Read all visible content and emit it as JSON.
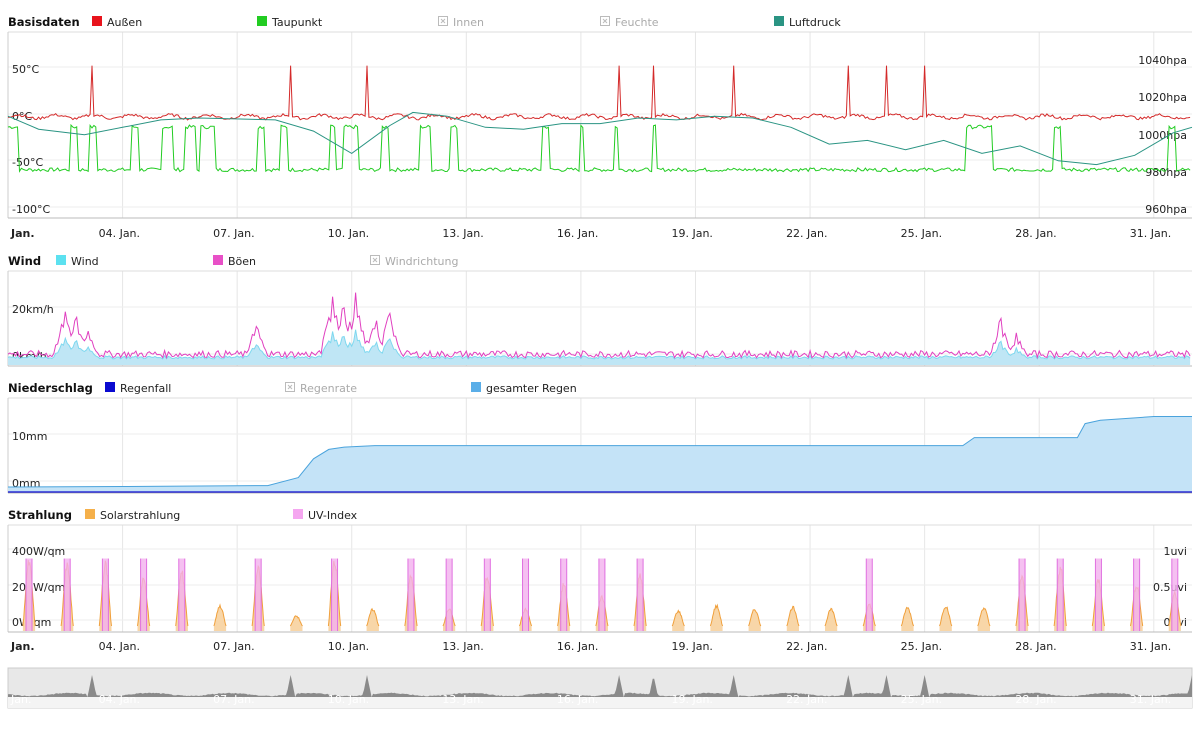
{
  "x_ticks": [
    "Jan.",
    "04. Jan.",
    "07. Jan.",
    "10. Jan.",
    "13. Jan.",
    "16. Jan.",
    "19. Jan.",
    "22. Jan.",
    "25. Jan.",
    "28. Jan.",
    "31. Jan."
  ],
  "navigator": {
    "ticks": [
      "Jan.",
      "04. Jan.",
      "07. Jan.",
      "10. Jan.",
      "13. Jan.",
      "16. Jan.",
      "19. Jan.",
      "22. Jan.",
      "25. Jan.",
      "28. Jan.",
      "31. Jan."
    ]
  },
  "chart_data": [
    {
      "type": "line",
      "title": "Basisdaten",
      "x_range": [
        1,
        32
      ],
      "yaxis_left": {
        "ticks": [
          "50°C",
          "0°C",
          "-50°C",
          "-100°C"
        ],
        "ylim": [
          -100,
          60
        ]
      },
      "yaxis_right": {
        "ticks": [
          "1040hpa",
          "1020hpa",
          "1000hpa",
          "980hpa",
          "960hpa"
        ],
        "ylim": [
          960,
          1040
        ]
      },
      "legend": [
        {
          "name": "Außen",
          "color": "#e8131c",
          "enabled": true
        },
        {
          "name": "Taupunkt",
          "color": "#22cc22",
          "enabled": true
        },
        {
          "name": "Innen",
          "color": "#aaaaaa",
          "enabled": false
        },
        {
          "name": "Feuchte",
          "color": "#aaaaaa",
          "enabled": false
        },
        {
          "name": "Luftdruck",
          "color": "#2a9483",
          "enabled": true
        }
      ],
      "series": [
        {
          "name": "Außen",
          "color": "#d42a2a",
          "axis": "left",
          "base": 3,
          "spikes": [
            3.2,
            8.4,
            10.4,
            17.0,
            17.9,
            20.0,
            23.0,
            24.0,
            25.0,
            32.0
          ],
          "spike_value": 58
        },
        {
          "name": "Taupunkt",
          "color": "#22cc22",
          "axis": "left",
          "low": -54,
          "high": -8,
          "highs": [
            [
              1.0,
              1.3
            ],
            [
              2.6,
              2.8
            ],
            [
              3.1,
              3.3
            ],
            [
              4.2,
              4.4
            ],
            [
              5.0,
              5.3
            ],
            [
              5.6,
              5.9
            ],
            [
              6.0,
              6.4
            ],
            [
              7.5,
              7.7
            ],
            [
              8.1,
              8.3
            ],
            [
              9.4,
              9.6
            ],
            [
              9.8,
              10.2
            ],
            [
              10.8,
              11.0
            ],
            [
              11.8,
              12.1
            ],
            [
              12.6,
              12.8
            ],
            [
              15.0,
              15.2
            ],
            [
              16.0,
              16.1
            ],
            [
              16.9,
              17.0
            ],
            [
              17.9,
              18.0
            ],
            [
              26.1,
              26.8
            ],
            [
              28.4,
              28.6
            ],
            [
              31.4,
              31.6
            ]
          ]
        },
        {
          "name": "Luftdruck",
          "color": "#2a9483",
          "axis": "right",
          "points": [
            [
              1,
              1012
            ],
            [
              1.8,
              1005
            ],
            [
              3,
              1002
            ],
            [
              4,
              1006
            ],
            [
              5,
              1010
            ],
            [
              6,
              1011
            ],
            [
              8,
              1010
            ],
            [
              9,
              1004
            ],
            [
              10,
              992
            ],
            [
              11,
              1007
            ],
            [
              11.6,
              1014
            ],
            [
              12.5,
              1012
            ],
            [
              13.5,
              1006
            ],
            [
              14.5,
              1005
            ],
            [
              15.5,
              1008
            ],
            [
              16.5,
              1008
            ],
            [
              17.5,
              1011
            ],
            [
              18.5,
              1010
            ],
            [
              19.5,
              1012
            ],
            [
              20.5,
              1011
            ],
            [
              21.5,
              1006
            ],
            [
              22.5,
              997
            ],
            [
              23.5,
              999
            ],
            [
              24.5,
              994
            ],
            [
              25.5,
              999
            ],
            [
              26.5,
              992
            ],
            [
              27.5,
              996
            ],
            [
              28.5,
              988
            ],
            [
              29.5,
              986
            ],
            [
              30.5,
              991
            ],
            [
              31.5,
              1003
            ],
            [
              32,
              1006
            ]
          ]
        }
      ]
    },
    {
      "type": "area",
      "title": "Wind",
      "x_range": [
        1,
        32
      ],
      "yaxis_left": {
        "ticks": [
          "20km/h",
          "0km/h"
        ],
        "ylim": [
          0,
          32
        ]
      },
      "legend": [
        {
          "name": "Wind",
          "color": "#5ce1f0",
          "enabled": true
        },
        {
          "name": "Böen",
          "color": "#e850c7",
          "enabled": true
        },
        {
          "name": "Windrichtung",
          "color": "#aaaaaa",
          "enabled": false
        }
      ],
      "series": [
        {
          "name": "Wind",
          "color": "#7ed8ef",
          "fill": "#bfe6f5"
        },
        {
          "name": "Böen",
          "color": "#e040c0"
        }
      ],
      "gust_peaks": [
        [
          2.5,
          24
        ],
        [
          2.8,
          20
        ],
        [
          3.1,
          14
        ],
        [
          7.5,
          16
        ],
        [
          9.5,
          31
        ],
        [
          9.8,
          28
        ],
        [
          10.1,
          30
        ],
        [
          10.6,
          20
        ],
        [
          11.0,
          22
        ],
        [
          27.0,
          19
        ],
        [
          27.4,
          12
        ]
      ]
    },
    {
      "type": "area",
      "title": "Niederschlag",
      "x_range": [
        1,
        32
      ],
      "yaxis_left": {
        "ticks": [
          "10mm",
          "0mm"
        ],
        "ylim": [
          0,
          20
        ]
      },
      "legend": [
        {
          "name": "Regenfall",
          "color": "#0a0ad0",
          "enabled": true
        },
        {
          "name": "Regenrate",
          "color": "#aaaaaa",
          "enabled": false
        },
        {
          "name": "gesamter Regen",
          "color": "#5aaee8",
          "enabled": true
        }
      ],
      "series": [
        {
          "name": "gesamter Regen",
          "color": "#4aa3dc",
          "fill": "#c4e3f7",
          "points": [
            [
              1,
              0
            ],
            [
              4,
              0.1
            ],
            [
              7.8,
              0.3
            ],
            [
              8.6,
              2
            ],
            [
              9,
              6
            ],
            [
              9.4,
              8
            ],
            [
              9.8,
              8.5
            ],
            [
              10.6,
              8.8
            ],
            [
              20,
              8.8
            ],
            [
              26,
              8.8
            ],
            [
              26.3,
              10.5
            ],
            [
              29.0,
              10.5
            ],
            [
              29.2,
              13.5
            ],
            [
              29.6,
              14.2
            ],
            [
              31,
              15
            ],
            [
              32,
              15
            ]
          ]
        },
        {
          "name": "Regenfall",
          "color": "#0a0ad0",
          "points": [
            [
              1,
              0
            ],
            [
              32,
              0
            ]
          ]
        }
      ]
    },
    {
      "type": "area",
      "title": "Strahlung",
      "x_range": [
        1,
        32
      ],
      "yaxis_left": {
        "ticks": [
          "400W/qm",
          "200W/qm",
          "0W/qm"
        ],
        "ylim": [
          0,
          460
        ]
      },
      "yaxis_right": {
        "ticks": [
          "1uvi",
          "0.5uvi",
          "0uvi"
        ],
        "ylim": [
          0,
          1.15
        ]
      },
      "legend": [
        {
          "name": "Solarstrahlung",
          "color": "#f5b04a",
          "enabled": true
        },
        {
          "name": "UV-Index",
          "color": "#f5a6f0",
          "enabled": true
        }
      ],
      "series": [
        {
          "name": "Solarstrahlung",
          "color": "#f0a03c",
          "fill": "#f8d6a8",
          "days": [
            [
              1.55,
              380
            ],
            [
              2.55,
              360
            ],
            [
              3.55,
              370
            ],
            [
              4.55,
              280
            ],
            [
              5.55,
              320
            ],
            [
              6.55,
              120
            ],
            [
              7.55,
              340
            ],
            [
              8.55,
              60
            ],
            [
              9.55,
              400
            ],
            [
              10.55,
              100
            ],
            [
              11.55,
              300
            ],
            [
              12.55,
              100
            ],
            [
              13.55,
              300
            ],
            [
              14.55,
              100
            ],
            [
              15.55,
              250
            ],
            [
              16.55,
              180
            ],
            [
              17.55,
              300
            ],
            [
              18.55,
              90
            ],
            [
              19.55,
              120
            ],
            [
              20.55,
              100
            ],
            [
              21.55,
              115
            ],
            [
              22.55,
              100
            ],
            [
              23.55,
              130
            ],
            [
              24.55,
              110
            ],
            [
              25.55,
              120
            ],
            [
              26.55,
              110
            ],
            [
              27.55,
              290
            ],
            [
              28.55,
              350
            ],
            [
              29.55,
              280
            ],
            [
              30.55,
              250
            ],
            [
              31.55,
              200
            ]
          ]
        },
        {
          "name": "UV-Index",
          "color": "#e070e0",
          "fill": "#f3b0ee",
          "days": [
            [
              1.55,
              0.95
            ],
            [
              2.55,
              0.95
            ],
            [
              3.55,
              0.95
            ],
            [
              4.55,
              0.95
            ],
            [
              5.55,
              0.95
            ],
            [
              7.55,
              0.95
            ],
            [
              9.55,
              0.95
            ],
            [
              11.55,
              0.95
            ],
            [
              12.55,
              0.95
            ],
            [
              13.55,
              0.95
            ],
            [
              14.55,
              0.95
            ],
            [
              15.55,
              0.95
            ],
            [
              16.55,
              0.95
            ],
            [
              17.55,
              0.95
            ],
            [
              23.55,
              0.95
            ],
            [
              27.55,
              0.95
            ],
            [
              28.55,
              0.95
            ],
            [
              29.55,
              0.95
            ],
            [
              30.55,
              0.95
            ],
            [
              31.55,
              0.95
            ]
          ]
        }
      ]
    }
  ]
}
